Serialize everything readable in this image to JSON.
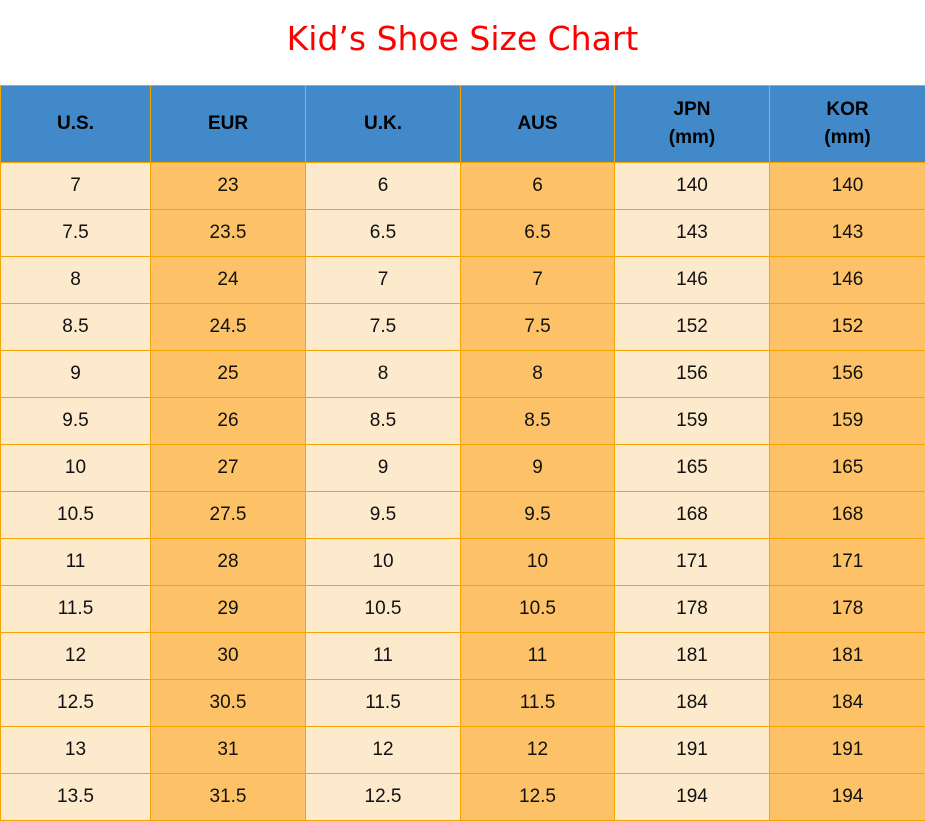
{
  "title": "Kid’s Shoe Size Chart",
  "colors": {
    "title": "#ff0000",
    "header_bg": "#4189c8",
    "light_col": "#fde9cb",
    "dark_col": "#fdc268",
    "border": "#f5a500"
  },
  "chart_data": {
    "type": "table",
    "title": "Kid’s Shoe Size Chart",
    "columns": [
      {
        "line1": "U.S.",
        "line2": ""
      },
      {
        "line1": "EUR",
        "line2": ""
      },
      {
        "line1": "U.K.",
        "line2": ""
      },
      {
        "line1": "AUS",
        "line2": ""
      },
      {
        "line1": "JPN",
        "line2": "(mm)"
      },
      {
        "line1": "KOR",
        "line2": "(mm)"
      }
    ],
    "rows": [
      [
        "7",
        "23",
        "6",
        "6",
        "140",
        "140"
      ],
      [
        "7.5",
        "23.5",
        "6.5",
        "6.5",
        "143",
        "143"
      ],
      [
        "8",
        "24",
        "7",
        "7",
        "146",
        "146"
      ],
      [
        "8.5",
        "24.5",
        "7.5",
        "7.5",
        "152",
        "152"
      ],
      [
        "9",
        "25",
        "8",
        "8",
        "156",
        "156"
      ],
      [
        "9.5",
        "26",
        "8.5",
        "8.5",
        "159",
        "159"
      ],
      [
        "10",
        "27",
        "9",
        "9",
        "165",
        "165"
      ],
      [
        "10.5",
        "27.5",
        "9.5",
        "9.5",
        "168",
        "168"
      ],
      [
        "11",
        "28",
        "10",
        "10",
        "171",
        "171"
      ],
      [
        "11.5",
        "29",
        "10.5",
        "10.5",
        "178",
        "178"
      ],
      [
        "12",
        "30",
        "11",
        "11",
        "181",
        "181"
      ],
      [
        "12.5",
        "30.5",
        "11.5",
        "11.5",
        "184",
        "184"
      ],
      [
        "13",
        "31",
        "12",
        "12",
        "191",
        "191"
      ],
      [
        "13.5",
        "31.5",
        "12.5",
        "12.5",
        "194",
        "194"
      ]
    ]
  }
}
